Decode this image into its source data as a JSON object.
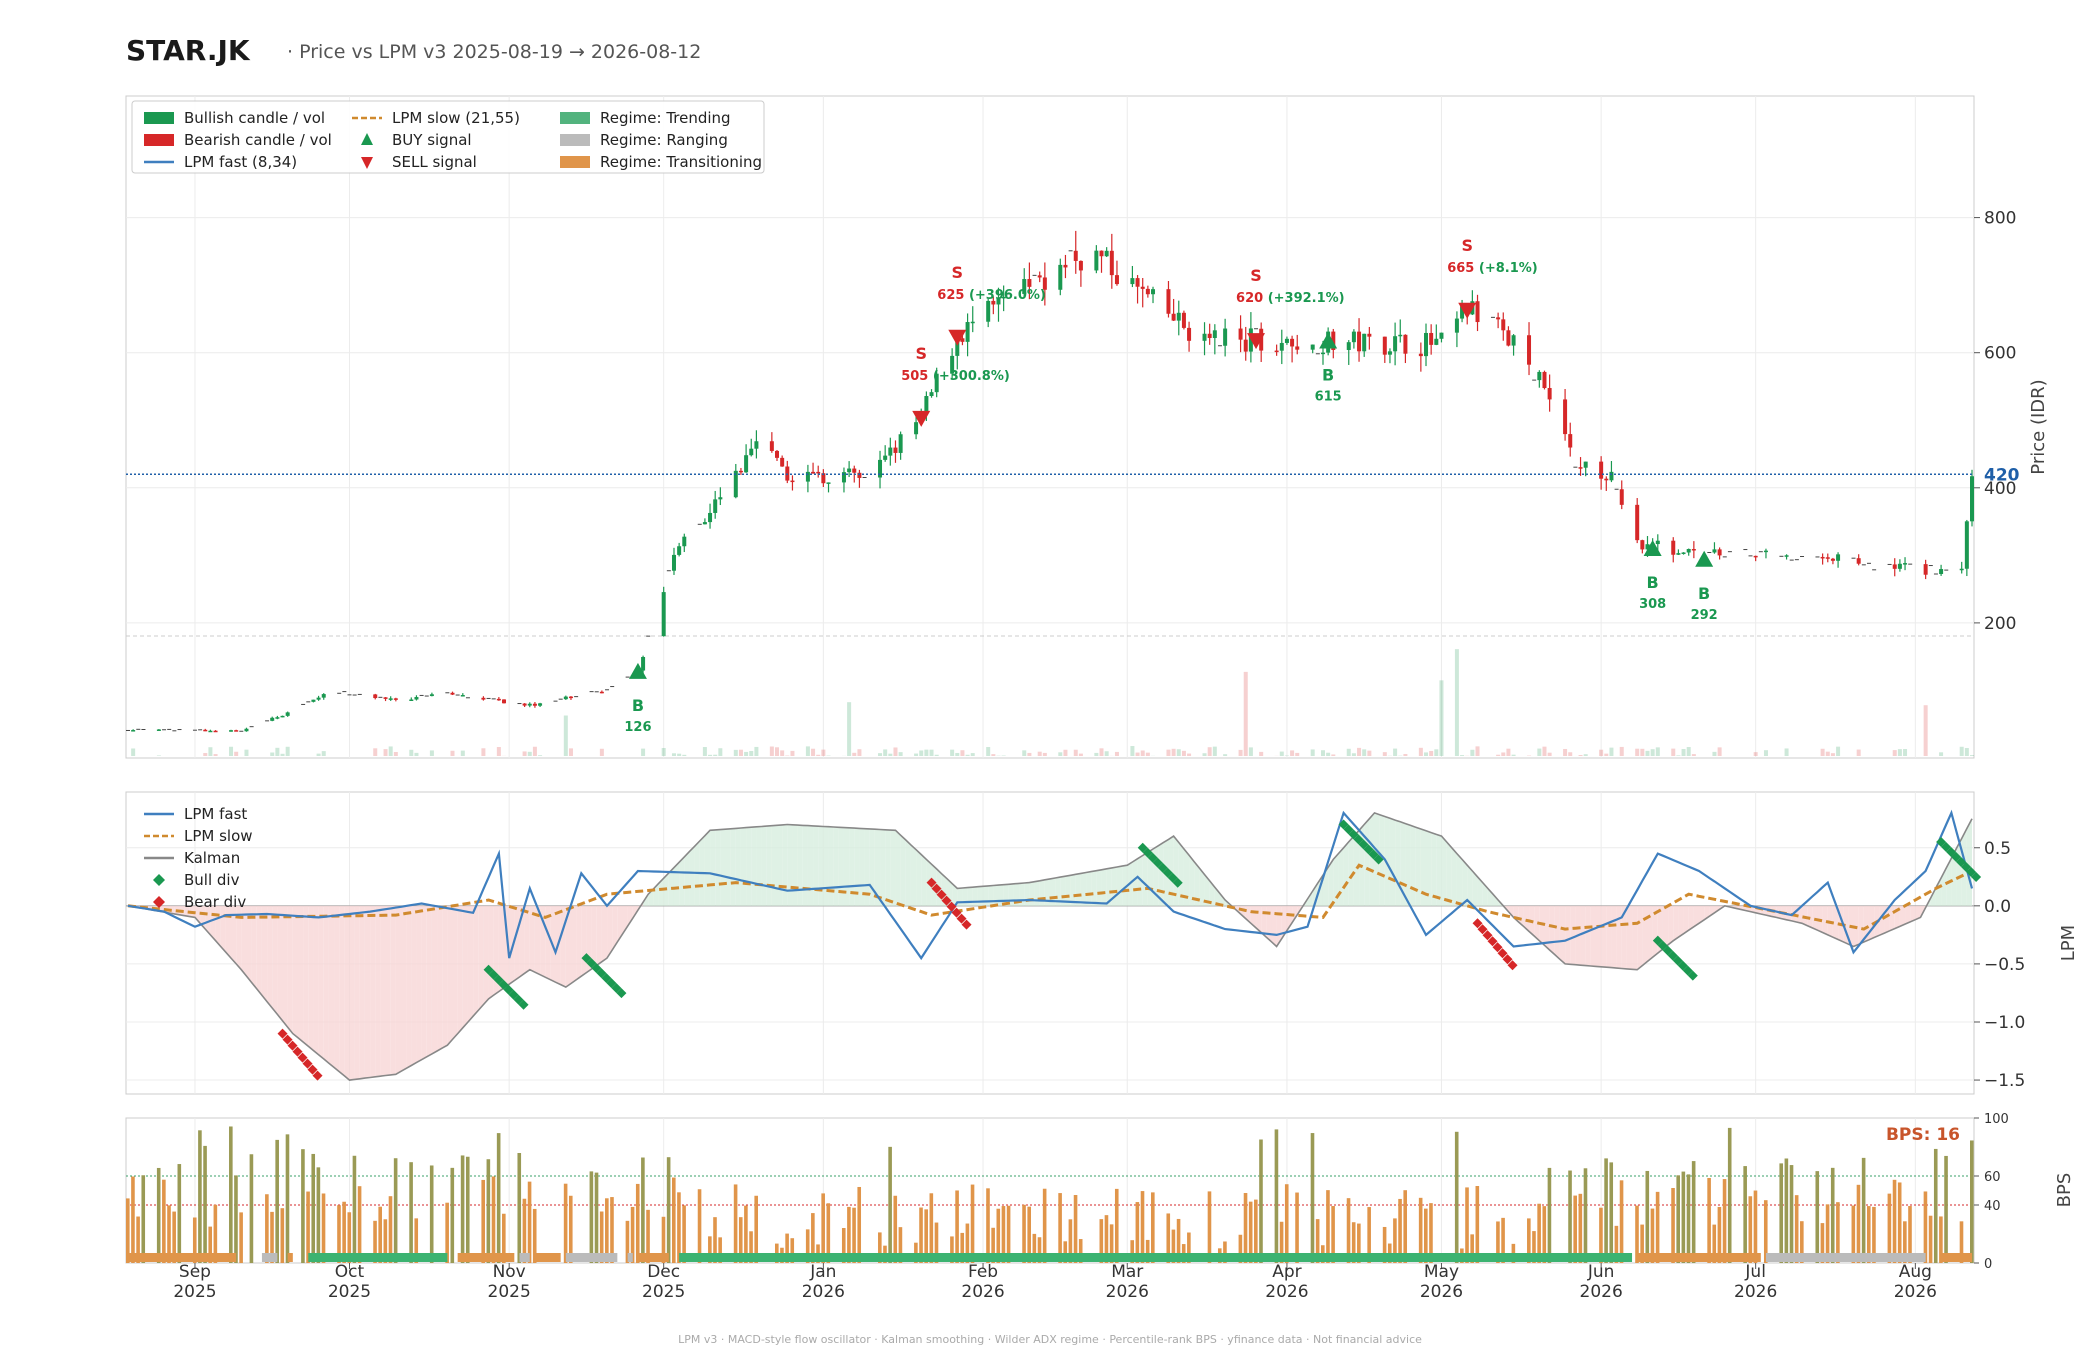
{
  "header": {
    "ticker": "STAR.JK",
    "subtitle": "·  Price vs LPM v3  2025-08-19 → 2026-08-12"
  },
  "footer": "LPM v3  ·  MACD-style flow oscillator  ·  Kalman smoothing  ·  Wilder ADX regime  ·  Percentile-rank BPS  ·  yfinance data  ·  Not financial advice",
  "colors": {
    "bull": "#1a9850",
    "bear": "#d62728",
    "lpm_fast": "#3f7fbf",
    "lpm_slow": "#d08a2e",
    "kalman": "#888888",
    "regime_trending": "#3cb371",
    "regime_ranging": "#bbbbbb",
    "regime_transitioning": "#e0954a"
  },
  "chart_data": [
    {
      "type": "candlestick",
      "ylabel": "Price (IDR)",
      "ylim": [
        0,
        980
      ],
      "yticks": [
        200,
        400,
        600,
        800
      ],
      "last_price": "420",
      "legend": [
        {
          "label": "Bullish candle / vol",
          "kind": "rect",
          "color": "#1a9850"
        },
        {
          "label": "Bearish candle / vol",
          "kind": "rect",
          "color": "#d62728"
        },
        {
          "label": "LPM fast (8,34)",
          "kind": "line",
          "color": "#3f7fbf"
        },
        {
          "label": "LPM slow (21,55)",
          "kind": "dash",
          "color": "#d08a2e"
        },
        {
          "label": "BUY signal",
          "kind": "up",
          "color": "#1a9850"
        },
        {
          "label": "SELL signal",
          "kind": "down",
          "color": "#d62728"
        },
        {
          "label": "Regime: Trending",
          "kind": "rect",
          "color": "#52b37e"
        },
        {
          "label": "Regime: Ranging",
          "kind": "rect",
          "color": "#bbbbbb"
        },
        {
          "label": "Regime: Transitioning",
          "kind": "rect",
          "color": "#e0954a"
        }
      ],
      "x_ticks": [
        {
          "date": "2025-09-01",
          "m": "Sep",
          "y": "2025"
        },
        {
          "date": "2025-10-01",
          "m": "Oct",
          "y": "2025"
        },
        {
          "date": "2025-11-01",
          "m": "Nov",
          "y": "2025"
        },
        {
          "date": "2025-12-01",
          "m": "Dec",
          "y": "2025"
        },
        {
          "date": "2026-01-01",
          "m": "Jan",
          "y": "2026"
        },
        {
          "date": "2026-02-01",
          "m": "Feb",
          "y": "2026"
        },
        {
          "date": "2026-03-01",
          "m": "Mar",
          "y": "2026"
        },
        {
          "date": "2026-04-01",
          "m": "Apr",
          "y": "2026"
        },
        {
          "date": "2026-05-01",
          "m": "May",
          "y": "2026"
        },
        {
          "date": "2026-06-01",
          "m": "Jun",
          "y": "2026"
        },
        {
          "date": "2026-07-01",
          "m": "Jul",
          "y": "2026"
        },
        {
          "date": "2026-08-01",
          "m": "Aug",
          "y": "2026"
        }
      ],
      "signals": [
        {
          "type": "buy",
          "date": "2025-11-26",
          "price": 126,
          "label": "B",
          "value": "126"
        },
        {
          "type": "sell",
          "date": "2026-01-20",
          "price": 505,
          "label": "S",
          "value": "505 (+300.8%)"
        },
        {
          "type": "sell",
          "date": "2026-01-27",
          "price": 625,
          "label": "S",
          "value": "625 (+396.0%)"
        },
        {
          "type": "sell",
          "date": "2026-03-26",
          "price": 620,
          "label": "S",
          "value": "620 (+392.1%)"
        },
        {
          "type": "buy",
          "date": "2026-04-09",
          "price": 615,
          "label": "B",
          "value": "615"
        },
        {
          "type": "sell",
          "date": "2026-05-06",
          "price": 665,
          "label": "S",
          "value": "665 (+8.1%)"
        },
        {
          "type": "buy",
          "date": "2026-06-11",
          "price": 308,
          "label": "B",
          "value": "308"
        },
        {
          "type": "buy",
          "date": "2026-06-21",
          "price": 292,
          "label": "B",
          "value": "292"
        }
      ],
      "price_path": [
        [
          "2025-08-19",
          42
        ],
        [
          "2025-09-10",
          40
        ],
        [
          "2025-09-20",
          70
        ],
        [
          "2025-09-28",
          100
        ],
        [
          "2025-10-10",
          85
        ],
        [
          "2025-10-20",
          95
        ],
        [
          "2025-11-05",
          78
        ],
        [
          "2025-11-20",
          100
        ],
        [
          "2025-11-26",
          126
        ],
        [
          "2025-12-01",
          250
        ],
        [
          "2025-12-03",
          300
        ],
        [
          "2025-12-20",
          470
        ],
        [
          "2025-12-24",
          420
        ],
        [
          "2026-01-10",
          415
        ],
        [
          "2026-01-20",
          505
        ],
        [
          "2026-01-27",
          625
        ],
        [
          "2026-02-10",
          700
        ],
        [
          "2026-02-22",
          750
        ],
        [
          "2026-03-05",
          680
        ],
        [
          "2026-03-15",
          620
        ],
        [
          "2026-03-26",
          620
        ],
        [
          "2026-04-09",
          615
        ],
        [
          "2026-04-20",
          615
        ],
        [
          "2026-05-01",
          612
        ],
        [
          "2026-05-06",
          665
        ],
        [
          "2026-05-15",
          620
        ],
        [
          "2026-05-20",
          560
        ],
        [
          "2026-05-27",
          440
        ],
        [
          "2026-06-03",
          420
        ],
        [
          "2026-06-08",
          320
        ],
        [
          "2026-06-20",
          300
        ],
        [
          "2026-07-10",
          300
        ],
        [
          "2026-07-25",
          285
        ],
        [
          "2026-08-10",
          275
        ],
        [
          "2026-08-12",
          420
        ]
      ]
    },
    {
      "type": "line",
      "ylabel": "LPM",
      "ylim": [
        -1.62,
        0.98
      ],
      "yticks": [
        0.5,
        0.0,
        -0.5,
        -1.0,
        -1.5
      ],
      "yticklabels": [
        "0.5",
        "0.0",
        "−0.5",
        "−1.0",
        "−1.5"
      ],
      "legend": [
        {
          "label": "LPM fast",
          "kind": "line",
          "color": "#3f7fbf"
        },
        {
          "label": "LPM slow",
          "kind": "dash",
          "color": "#d08a2e"
        },
        {
          "label": "Kalman",
          "kind": "line",
          "color": "#888888"
        },
        {
          "label": "Bull div",
          "kind": "diamond",
          "color": "#1a9850"
        },
        {
          "label": "Bear div",
          "kind": "diamond",
          "color": "#d62728"
        }
      ],
      "series": [
        {
          "name": "LPM fast",
          "points": [
            [
              "2025-08-19",
              0.0
            ],
            [
              "2025-08-26",
              -0.05
            ],
            [
              "2025-09-01",
              -0.18
            ],
            [
              "2025-09-07",
              -0.08
            ],
            [
              "2025-09-15",
              -0.07
            ],
            [
              "2025-09-25",
              -0.1
            ],
            [
              "2025-10-05",
              -0.05
            ],
            [
              "2025-10-15",
              0.02
            ],
            [
              "2025-10-25",
              -0.06
            ],
            [
              "2025-10-30",
              0.45
            ],
            [
              "2025-11-01",
              -0.45
            ],
            [
              "2025-11-05",
              0.15
            ],
            [
              "2025-11-10",
              -0.4
            ],
            [
              "2025-11-15",
              0.28
            ],
            [
              "2025-11-20",
              0.0
            ],
            [
              "2025-11-26",
              0.3
            ],
            [
              "2025-12-10",
              0.28
            ],
            [
              "2025-12-25",
              0.13
            ],
            [
              "2026-01-10",
              0.18
            ],
            [
              "2026-01-20",
              -0.45
            ],
            [
              "2026-01-27",
              0.03
            ],
            [
              "2026-02-10",
              0.05
            ],
            [
              "2026-02-25",
              0.02
            ],
            [
              "2026-03-03",
              0.25
            ],
            [
              "2026-03-10",
              -0.05
            ],
            [
              "2026-03-20",
              -0.2
            ],
            [
              "2026-03-30",
              -0.25
            ],
            [
              "2026-04-05",
              -0.18
            ],
            [
              "2026-04-12",
              0.8
            ],
            [
              "2026-04-20",
              0.4
            ],
            [
              "2026-04-28",
              -0.25
            ],
            [
              "2026-05-06",
              0.05
            ],
            [
              "2026-05-15",
              -0.35
            ],
            [
              "2026-05-25",
              -0.3
            ],
            [
              "2026-06-05",
              -0.1
            ],
            [
              "2026-06-12",
              0.45
            ],
            [
              "2026-06-20",
              0.3
            ],
            [
              "2026-06-30",
              0.0
            ],
            [
              "2026-07-08",
              -0.08
            ],
            [
              "2026-07-15",
              0.2
            ],
            [
              "2026-07-20",
              -0.4
            ],
            [
              "2026-07-28",
              0.05
            ],
            [
              "2026-08-03",
              0.3
            ],
            [
              "2026-08-08",
              0.8
            ],
            [
              "2026-08-12",
              0.15
            ]
          ]
        },
        {
          "name": "LPM slow",
          "points": [
            [
              "2025-08-19",
              0.0
            ],
            [
              "2025-09-10",
              -0.1
            ],
            [
              "2025-10-10",
              -0.08
            ],
            [
              "2025-10-28",
              0.05
            ],
            [
              "2025-11-08",
              -0.1
            ],
            [
              "2025-11-20",
              0.1
            ],
            [
              "2025-12-15",
              0.2
            ],
            [
              "2026-01-10",
              0.1
            ],
            [
              "2026-01-22",
              -0.08
            ],
            [
              "2026-02-10",
              0.05
            ],
            [
              "2026-03-05",
              0.15
            ],
            [
              "2026-03-25",
              -0.05
            ],
            [
              "2026-04-08",
              -0.1
            ],
            [
              "2026-04-15",
              0.35
            ],
            [
              "2026-04-28",
              0.1
            ],
            [
              "2026-05-10",
              -0.05
            ],
            [
              "2026-05-25",
              -0.2
            ],
            [
              "2026-06-08",
              -0.15
            ],
            [
              "2026-06-18",
              0.1
            ],
            [
              "2026-07-05",
              -0.05
            ],
            [
              "2026-07-22",
              -0.2
            ],
            [
              "2026-08-05",
              0.15
            ],
            [
              "2026-08-12",
              0.3
            ]
          ]
        },
        {
          "name": "Kalman",
          "points": [
            [
              "2025-08-19",
              0.0
            ],
            [
              "2025-09-01",
              -0.1
            ],
            [
              "2025-09-10",
              -0.55
            ],
            [
              "2025-09-20",
              -1.1
            ],
            [
              "2025-10-01",
              -1.5
            ],
            [
              "2025-10-10",
              -1.45
            ],
            [
              "2025-10-20",
              -1.2
            ],
            [
              "2025-10-28",
              -0.8
            ],
            [
              "2025-11-05",
              -0.55
            ],
            [
              "2025-11-12",
              -0.7
            ],
            [
              "2025-11-20",
              -0.45
            ],
            [
              "2025-11-28",
              0.1
            ],
            [
              "2025-12-10",
              0.65
            ],
            [
              "2025-12-25",
              0.7
            ],
            [
              "2026-01-15",
              0.65
            ],
            [
              "2026-01-27",
              0.15
            ],
            [
              "2026-02-10",
              0.2
            ],
            [
              "2026-03-01",
              0.35
            ],
            [
              "2026-03-10",
              0.6
            ],
            [
              "2026-03-20",
              0.05
            ],
            [
              "2026-03-30",
              -0.35
            ],
            [
              "2026-04-10",
              0.4
            ],
            [
              "2026-04-18",
              0.8
            ],
            [
              "2026-05-01",
              0.6
            ],
            [
              "2026-05-15",
              -0.1
            ],
            [
              "2026-05-25",
              -0.5
            ],
            [
              "2026-06-08",
              -0.55
            ],
            [
              "2026-06-15",
              -0.3
            ],
            [
              "2026-06-25",
              0.0
            ],
            [
              "2026-07-10",
              -0.15
            ],
            [
              "2026-07-20",
              -0.35
            ],
            [
              "2026-08-02",
              -0.1
            ],
            [
              "2026-08-12",
              0.75
            ]
          ]
        }
      ],
      "divergences": {
        "bull": [
          [
            "2025-10-28",
            -0.55
          ],
          [
            "2025-11-16",
            -0.45
          ],
          [
            "2026-03-04",
            0.5
          ],
          [
            "2026-04-12",
            0.7
          ],
          [
            "2026-06-12",
            -0.3
          ],
          [
            "2026-08-06",
            0.55
          ]
        ],
        "bear": [
          [
            "2025-09-18",
            -1.1
          ],
          [
            "2026-01-22",
            0.2
          ],
          [
            "2026-05-08",
            -0.15
          ]
        ]
      }
    },
    {
      "type": "bar",
      "ylabel": "BPS",
      "ylim": [
        0,
        100
      ],
      "yticks": [
        0,
        40,
        60,
        100
      ],
      "ref_lines": [
        60,
        40
      ],
      "last_label": "BPS: 16",
      "regime_bands": [
        {
          "from": "2025-08-19",
          "to": "2025-09-09",
          "regime": "Transitioning"
        },
        {
          "from": "2025-09-14",
          "to": "2025-09-17",
          "regime": "Ranging"
        },
        {
          "from": "2025-09-19",
          "to": "2025-09-20",
          "regime": "Transitioning"
        },
        {
          "from": "2025-09-23",
          "to": "2025-10-20",
          "regime": "Trending"
        },
        {
          "from": "2025-10-22",
          "to": "2025-11-02",
          "regime": "Transitioning"
        },
        {
          "from": "2025-11-03",
          "to": "2025-11-05",
          "regime": "Ranging"
        },
        {
          "from": "2025-11-06",
          "to": "2025-11-11",
          "regime": "Transitioning"
        },
        {
          "from": "2025-11-12",
          "to": "2025-11-22",
          "regime": "Ranging"
        },
        {
          "from": "2025-11-24",
          "to": "2025-11-25",
          "regime": "Ranging"
        },
        {
          "from": "2025-11-26",
          "to": "2025-12-02",
          "regime": "Transitioning"
        },
        {
          "from": "2025-12-04",
          "to": "2026-06-07",
          "regime": "Trending"
        },
        {
          "from": "2026-06-08",
          "to": "2026-07-02",
          "regime": "Transitioning"
        },
        {
          "from": "2026-07-03",
          "to": "2026-08-03",
          "regime": "Ranging"
        },
        {
          "from": "2026-08-06",
          "to": "2026-08-12",
          "regime": "Transitioning"
        }
      ]
    }
  ]
}
